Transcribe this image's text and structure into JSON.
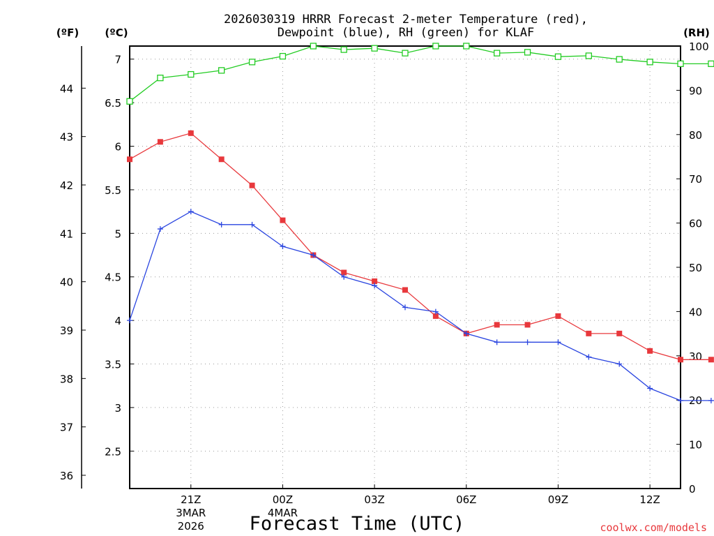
{
  "chart_data": {
    "type": "line",
    "title_line1": "2026030319 HRRR Forecast 2-meter Temperature (red),",
    "title_line2": "Dewpoint (blue), RH (green) for KLAF",
    "xlabel": "Forecast Time (UTC)",
    "credit": "coolwx.com/models",
    "units": {
      "fahrenheit": "(ºF)",
      "celsius": "(ºC)",
      "rh": "(RH)"
    },
    "x_hours": [
      19,
      20,
      21,
      22,
      23,
      24,
      25,
      26,
      27,
      28,
      29,
      30,
      31,
      32,
      33,
      34,
      35,
      36,
      37,
      38
    ],
    "x_range": [
      19,
      37
    ],
    "x_ticks": [
      {
        "hour": 21,
        "lines": [
          "21Z",
          "3MAR",
          "2026"
        ]
      },
      {
        "hour": 24,
        "lines": [
          "00Z",
          "4MAR"
        ]
      },
      {
        "hour": 27,
        "lines": [
          "03Z"
        ]
      },
      {
        "hour": 30,
        "lines": [
          "06Z"
        ]
      },
      {
        "hour": 33,
        "lines": [
          "09Z"
        ]
      },
      {
        "hour": 36,
        "lines": [
          "12Z"
        ]
      }
    ],
    "c_range": [
      2.07,
      7.15
    ],
    "c_ticks": [
      "2.5",
      "3",
      "3.5",
      "4",
      "4.5",
      "5",
      "5.5",
      "6",
      "6.5",
      "7"
    ],
    "f_ticks": [
      "36",
      "37",
      "38",
      "39",
      "40",
      "41",
      "42",
      "43",
      "44"
    ],
    "rh_range": [
      0,
      100
    ],
    "rh_ticks": [
      "0",
      "10",
      "20",
      "30",
      "40",
      "50",
      "60",
      "70",
      "80",
      "90",
      "100"
    ],
    "series": [
      {
        "name": "2-meter Temperature",
        "axis": "celsius",
        "color": "#e8383c",
        "marker": "filled-square",
        "values": [
          5.85,
          6.05,
          6.15,
          5.85,
          5.55,
          5.15,
          4.75,
          4.55,
          4.45,
          4.35,
          4.05,
          3.85,
          3.95,
          3.95,
          4.05,
          3.85,
          3.85,
          3.65,
          3.55,
          3.55
        ]
      },
      {
        "name": "Dewpoint",
        "axis": "celsius",
        "color": "#2a45e0",
        "marker": "plus",
        "values": [
          4.0,
          5.05,
          5.25,
          5.1,
          5.1,
          4.85,
          4.75,
          4.5,
          4.4,
          4.15,
          4.1,
          3.85,
          3.75,
          3.75,
          3.75,
          3.58,
          3.5,
          3.22,
          3.08,
          3.08
        ]
      },
      {
        "name": "RH",
        "axis": "rh",
        "color": "#22cc22",
        "marker": "open-square",
        "values": [
          87.5,
          92.8,
          93.6,
          94.5,
          96.4,
          97.7,
          100,
          99.2,
          99.5,
          98.4,
          100,
          100,
          98.4,
          98.6,
          97.6,
          97.8,
          97,
          96.4,
          96,
          96
        ]
      }
    ]
  }
}
